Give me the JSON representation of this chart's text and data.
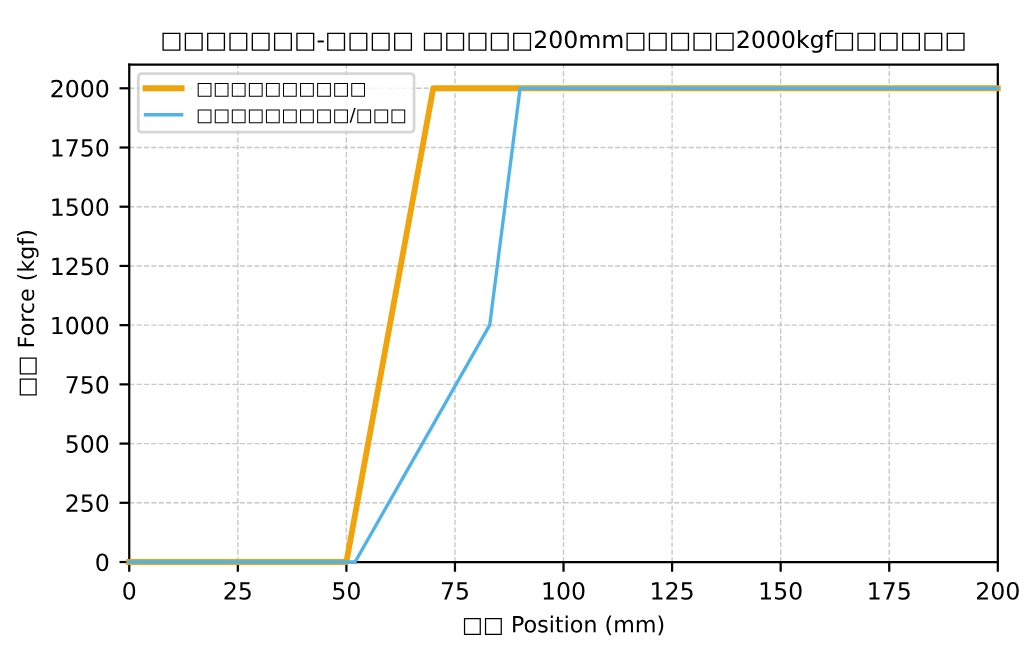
{
  "chart_data": {
    "type": "line",
    "title": "□□□□□□□-□□□□ □□□□□200mm□□□□□2000kgf□□□□□□",
    "xlabel": "□□ Position (mm)",
    "ylabel": "□□ Force (kgf)",
    "series": [
      {
        "name": "□□□□□□□□□□",
        "color": "#f0a30a",
        "x": [
          0,
          50,
          70,
          200
        ],
        "values": [
          0,
          0,
          2000,
          2000
        ]
      },
      {
        "name": "□□□□□□□□□/□□□",
        "color": "#4fb3e8",
        "x": [
          0,
          52,
          83,
          90,
          200
        ],
        "values": [
          0,
          0,
          1000,
          2000,
          2000
        ]
      }
    ],
    "xlim": [
      0,
      200
    ],
    "xticks": [
      0,
      25,
      50,
      75,
      100,
      125,
      150,
      175,
      200
    ],
    "ylim": [
      0,
      2100
    ],
    "yticks": [
      0,
      250,
      500,
      750,
      1000,
      1250,
      1500,
      1750,
      2000
    ],
    "grid": true,
    "legend": "top left",
    "line_style": "solid",
    "marker": "none"
  }
}
